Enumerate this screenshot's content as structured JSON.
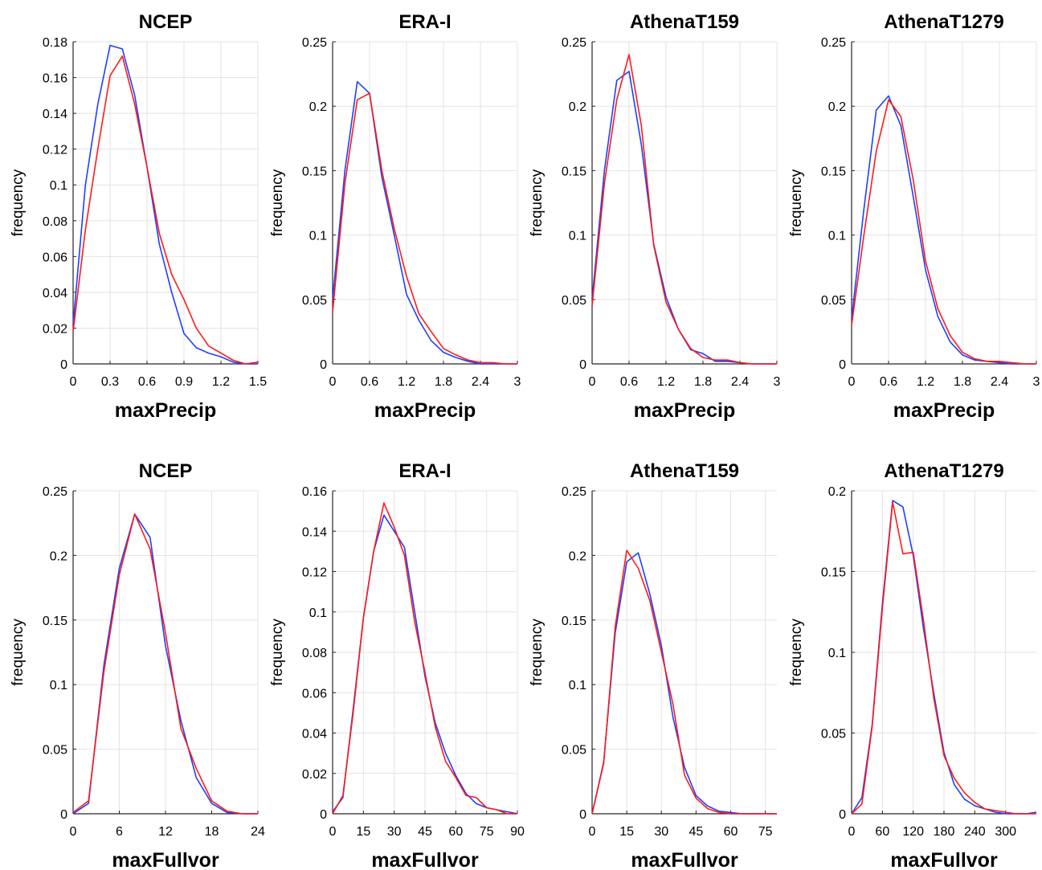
{
  "chart_data": [
    {
      "type": "line",
      "title": "NCEP",
      "xlabel": "maxPrecip",
      "ylabel": "frequency",
      "xlim": [
        0,
        1.5
      ],
      "ylim": [
        0,
        0.18
      ],
      "xticks": [
        0,
        0.3,
        0.6,
        0.9,
        1.2,
        1.5
      ],
      "yticks": [
        0,
        0.02,
        0.04,
        0.06,
        0.08,
        0.1,
        0.12,
        0.14,
        0.16,
        0.18
      ],
      "xtick_labels": [
        "0",
        "0.3",
        "0.6",
        "0.9",
        "1.2",
        "1.5"
      ],
      "ytick_labels": [
        "0",
        "0.02",
        "0.04",
        "0.06",
        "0.08",
        "0.1",
        "0.12",
        "0.14",
        "0.16",
        "0.18"
      ],
      "grid": true,
      "series": [
        {
          "color": "#1f3fff",
          "x": [
            0,
            0.1,
            0.2,
            0.3,
            0.4,
            0.5,
            0.6,
            0.7,
            0.8,
            0.9,
            1.0,
            1.1,
            1.2,
            1.3,
            1.4,
            1.5
          ],
          "y": [
            0.022,
            0.1,
            0.145,
            0.178,
            0.176,
            0.15,
            0.11,
            0.067,
            0.04,
            0.017,
            0.009,
            0.006,
            0.004,
            0.001,
            0.0,
            0.0
          ]
        },
        {
          "color": "#ff1a1a",
          "x": [
            0,
            0.1,
            0.2,
            0.3,
            0.4,
            0.5,
            0.6,
            0.7,
            0.8,
            0.9,
            1.0,
            1.1,
            1.2,
            1.3,
            1.4,
            1.5
          ],
          "y": [
            0.018,
            0.075,
            0.12,
            0.161,
            0.172,
            0.145,
            0.11,
            0.073,
            0.05,
            0.036,
            0.02,
            0.01,
            0.006,
            0.002,
            0.0,
            0.001
          ]
        }
      ]
    },
    {
      "type": "line",
      "title": "ERA-I",
      "xlabel": "maxPrecip",
      "ylabel": "frequency",
      "xlim": [
        0,
        3
      ],
      "ylim": [
        0,
        0.25
      ],
      "xticks": [
        0,
        0.6,
        1.2,
        1.8,
        2.4,
        3
      ],
      "yticks": [
        0,
        0.05,
        0.1,
        0.15,
        0.2,
        0.25
      ],
      "xtick_labels": [
        "0",
        "0.6",
        "1.2",
        "1.8",
        "2.4",
        "3"
      ],
      "ytick_labels": [
        "0",
        "0.05",
        "0.1",
        "0.15",
        "0.2",
        "0.25"
      ],
      "grid": true,
      "series": [
        {
          "color": "#1f3fff",
          "x": [
            0,
            0.2,
            0.4,
            0.6,
            0.8,
            1.0,
            1.2,
            1.4,
            1.6,
            1.8,
            2.0,
            2.2,
            2.4,
            2.6,
            2.8,
            3.0
          ],
          "y": [
            0.05,
            0.15,
            0.219,
            0.21,
            0.145,
            0.1,
            0.054,
            0.034,
            0.018,
            0.009,
            0.005,
            0.002,
            0.0,
            0.0,
            0.0,
            0.0
          ]
        },
        {
          "color": "#ff1a1a",
          "x": [
            0,
            0.2,
            0.4,
            0.6,
            0.8,
            1.0,
            1.2,
            1.4,
            1.6,
            1.8,
            2.0,
            2.2,
            2.4,
            2.6,
            2.8,
            3.0
          ],
          "y": [
            0.04,
            0.14,
            0.205,
            0.21,
            0.15,
            0.105,
            0.068,
            0.039,
            0.025,
            0.012,
            0.007,
            0.003,
            0.001,
            0.001,
            0.0,
            0.0
          ]
        }
      ]
    },
    {
      "type": "line",
      "title": "AthenaT159",
      "xlabel": "maxPrecip",
      "ylabel": "frequency",
      "xlim": [
        0,
        3
      ],
      "ylim": [
        0,
        0.25
      ],
      "xticks": [
        0,
        0.6,
        1.2,
        1.8,
        2.4,
        3
      ],
      "yticks": [
        0,
        0.05,
        0.1,
        0.15,
        0.2,
        0.25
      ],
      "xtick_labels": [
        "0",
        "0.6",
        "1.2",
        "1.8",
        "2.4",
        "3"
      ],
      "ytick_labels": [
        "0",
        "0.05",
        "0.1",
        "0.15",
        "0.2",
        "0.25"
      ],
      "grid": true,
      "series": [
        {
          "color": "#1f3fff",
          "x": [
            0,
            0.2,
            0.4,
            0.6,
            0.8,
            1.0,
            1.2,
            1.4,
            1.6,
            1.8,
            2.0,
            2.2,
            2.4,
            2.6,
            2.8,
            3.0
          ],
          "y": [
            0.05,
            0.15,
            0.22,
            0.227,
            0.17,
            0.093,
            0.052,
            0.027,
            0.011,
            0.008,
            0.002,
            0.002,
            0.001,
            0.0,
            0.0,
            0.0
          ]
        },
        {
          "color": "#ff1a1a",
          "x": [
            0,
            0.2,
            0.4,
            0.6,
            0.8,
            1.0,
            1.2,
            1.4,
            1.6,
            1.8,
            2.0,
            2.2,
            2.4,
            2.6,
            2.8,
            3.0
          ],
          "y": [
            0.045,
            0.14,
            0.205,
            0.24,
            0.185,
            0.092,
            0.048,
            0.027,
            0.012,
            0.005,
            0.003,
            0.003,
            0.001,
            0.0,
            0.0,
            0.0
          ]
        }
      ]
    },
    {
      "type": "line",
      "title": "AthenaT1279",
      "xlabel": "maxPrecip",
      "ylabel": "frequency",
      "xlim": [
        0,
        3
      ],
      "ylim": [
        0,
        0.25
      ],
      "xticks": [
        0,
        0.6,
        1.2,
        1.8,
        2.4,
        3
      ],
      "yticks": [
        0,
        0.05,
        0.1,
        0.15,
        0.2,
        0.25
      ],
      "xtick_labels": [
        "0",
        "0.6",
        "1.2",
        "1.8",
        "2.4",
        "3"
      ],
      "ytick_labels": [
        "0",
        "0.05",
        "0.1",
        "0.15",
        "0.2",
        "0.25"
      ],
      "grid": true,
      "series": [
        {
          "color": "#1f3fff",
          "x": [
            0,
            0.2,
            0.4,
            0.6,
            0.8,
            1.0,
            1.2,
            1.4,
            1.6,
            1.8,
            2.0,
            2.2,
            2.4,
            2.6,
            2.8,
            3.0
          ],
          "y": [
            0.035,
            0.12,
            0.197,
            0.208,
            0.185,
            0.13,
            0.073,
            0.037,
            0.017,
            0.007,
            0.003,
            0.002,
            0.001,
            0.0,
            0.0,
            0.0
          ]
        },
        {
          "color": "#ff1a1a",
          "x": [
            0,
            0.2,
            0.4,
            0.6,
            0.8,
            1.0,
            1.2,
            1.4,
            1.6,
            1.8,
            2.0,
            2.2,
            2.4,
            2.6,
            2.8,
            3.0
          ],
          "y": [
            0.03,
            0.1,
            0.165,
            0.205,
            0.192,
            0.143,
            0.08,
            0.043,
            0.022,
            0.009,
            0.004,
            0.002,
            0.002,
            0.001,
            0.0,
            0.0
          ]
        }
      ]
    },
    {
      "type": "line",
      "title": "NCEP",
      "xlabel": "maxFullvor",
      "ylabel": "frequency",
      "xlim": [
        0,
        24
      ],
      "ylim": [
        0,
        0.25
      ],
      "xticks": [
        0,
        6,
        12,
        18,
        24
      ],
      "yticks": [
        0,
        0.05,
        0.1,
        0.15,
        0.2,
        0.25
      ],
      "xtick_labels": [
        "0",
        "6",
        "12",
        "18",
        "24"
      ],
      "ytick_labels": [
        "0",
        "0.05",
        "0.1",
        "0.15",
        "0.2",
        "0.25"
      ],
      "grid": true,
      "series": [
        {
          "color": "#1f3fff",
          "x": [
            0,
            2,
            4,
            6,
            8,
            10,
            12,
            14,
            16,
            18,
            20,
            22,
            24
          ],
          "y": [
            0.0,
            0.008,
            0.115,
            0.19,
            0.232,
            0.214,
            0.13,
            0.072,
            0.028,
            0.008,
            0.001,
            0.0,
            0.0
          ]
        },
        {
          "color": "#ff1a1a",
          "x": [
            0,
            2,
            4,
            6,
            8,
            10,
            12,
            14,
            16,
            18,
            20,
            22,
            24
          ],
          "y": [
            0.001,
            0.01,
            0.11,
            0.185,
            0.232,
            0.205,
            0.14,
            0.066,
            0.035,
            0.01,
            0.002,
            0.0,
            0.0
          ]
        }
      ]
    },
    {
      "type": "line",
      "title": "ERA-I",
      "xlabel": "maxFullvor",
      "ylabel": "frequency",
      "xlim": [
        0,
        90
      ],
      "ylim": [
        0,
        0.16
      ],
      "xticks": [
        0,
        15,
        30,
        45,
        60,
        75,
        90
      ],
      "yticks": [
        0,
        0.02,
        0.04,
        0.06,
        0.08,
        0.1,
        0.12,
        0.14,
        0.16
      ],
      "xtick_labels": [
        "0",
        "15",
        "30",
        "45",
        "60",
        "75",
        "90"
      ],
      "ytick_labels": [
        "0",
        "0.02",
        "0.04",
        "0.06",
        "0.08",
        "0.1",
        "0.12",
        "0.14",
        "0.16"
      ],
      "grid": true,
      "series": [
        {
          "color": "#1f3fff",
          "x": [
            0,
            5,
            10,
            15,
            20,
            25,
            30,
            35,
            40,
            45,
            50,
            55,
            60,
            65,
            70,
            75,
            80,
            85,
            90
          ],
          "y": [
            0.001,
            0.008,
            0.052,
            0.097,
            0.13,
            0.148,
            0.14,
            0.132,
            0.1,
            0.068,
            0.045,
            0.03,
            0.019,
            0.01,
            0.005,
            0.003,
            0.002,
            0.001,
            0.0
          ]
        },
        {
          "color": "#ff1a1a",
          "x": [
            0,
            5,
            10,
            15,
            20,
            25,
            30,
            35,
            40,
            45,
            50,
            55,
            60,
            65,
            70,
            75,
            80,
            85,
            90
          ],
          "y": [
            0.0,
            0.009,
            0.05,
            0.097,
            0.13,
            0.154,
            0.142,
            0.128,
            0.095,
            0.07,
            0.043,
            0.026,
            0.018,
            0.009,
            0.008,
            0.003,
            0.002,
            0.0,
            0.0
          ]
        }
      ]
    },
    {
      "type": "line",
      "title": "AthenaT159",
      "xlabel": "maxFullvor",
      "ylabel": "frequency",
      "xlim": [
        0,
        80
      ],
      "ylim": [
        0,
        0.25
      ],
      "xticks": [
        0,
        15,
        30,
        45,
        60,
        75
      ],
      "yticks": [
        0,
        0.05,
        0.1,
        0.15,
        0.2,
        0.25
      ],
      "xtick_labels": [
        "0",
        "15",
        "30",
        "45",
        "60",
        "75"
      ],
      "ytick_labels": [
        "0",
        "0.05",
        "0.1",
        "0.15",
        "0.2",
        "0.25"
      ],
      "grid": true,
      "series": [
        {
          "color": "#1f3fff",
          "x": [
            0,
            5,
            10,
            15,
            20,
            25,
            30,
            35,
            40,
            45,
            50,
            55,
            60,
            65,
            70,
            75,
            80
          ],
          "y": [
            0.0,
            0.04,
            0.14,
            0.195,
            0.202,
            0.17,
            0.13,
            0.075,
            0.036,
            0.014,
            0.006,
            0.002,
            0.001,
            0.0,
            0.0,
            0.0,
            0.0
          ]
        },
        {
          "color": "#ff1a1a",
          "x": [
            0,
            5,
            10,
            15,
            20,
            25,
            30,
            35,
            40,
            45,
            50,
            55,
            60,
            65,
            70,
            75,
            80
          ],
          "y": [
            0.0,
            0.039,
            0.145,
            0.204,
            0.19,
            0.165,
            0.125,
            0.085,
            0.03,
            0.012,
            0.004,
            0.001,
            0.0,
            0.0,
            0.0,
            0.0,
            0.0
          ]
        }
      ]
    },
    {
      "type": "line",
      "title": "AthenaT1279",
      "xlabel": "maxFullvor",
      "ylabel": "frequency",
      "xlim": [
        0,
        360
      ],
      "ylim": [
        0,
        0.2
      ],
      "xticks": [
        0,
        60,
        120,
        180,
        240,
        300
      ],
      "yticks": [
        0,
        0.05,
        0.1,
        0.15,
        0.2
      ],
      "xtick_labels": [
        "0",
        "60",
        "120",
        "180",
        "240",
        "300"
      ],
      "ytick_labels": [
        "0",
        "0.05",
        "0.1",
        "0.15",
        "0.2"
      ],
      "grid": true,
      "series": [
        {
          "color": "#1f3fff",
          "x": [
            0,
            20,
            40,
            60,
            80,
            100,
            120,
            140,
            160,
            180,
            200,
            220,
            240,
            260,
            280,
            300,
            320,
            340,
            360
          ],
          "y": [
            0.0,
            0.01,
            0.055,
            0.13,
            0.194,
            0.19,
            0.16,
            0.115,
            0.075,
            0.038,
            0.018,
            0.009,
            0.005,
            0.003,
            0.001,
            0.0,
            0.0,
            0.0,
            0.001
          ]
        },
        {
          "color": "#ff1a1a",
          "x": [
            0,
            20,
            40,
            60,
            80,
            100,
            120,
            140,
            160,
            180,
            200,
            220,
            240,
            260,
            280,
            300,
            320,
            340,
            360
          ],
          "y": [
            0.0,
            0.006,
            0.054,
            0.127,
            0.193,
            0.161,
            0.162,
            0.12,
            0.072,
            0.036,
            0.022,
            0.013,
            0.007,
            0.003,
            0.002,
            0.001,
            0.0,
            0.0,
            0.0
          ]
        }
      ]
    }
  ]
}
